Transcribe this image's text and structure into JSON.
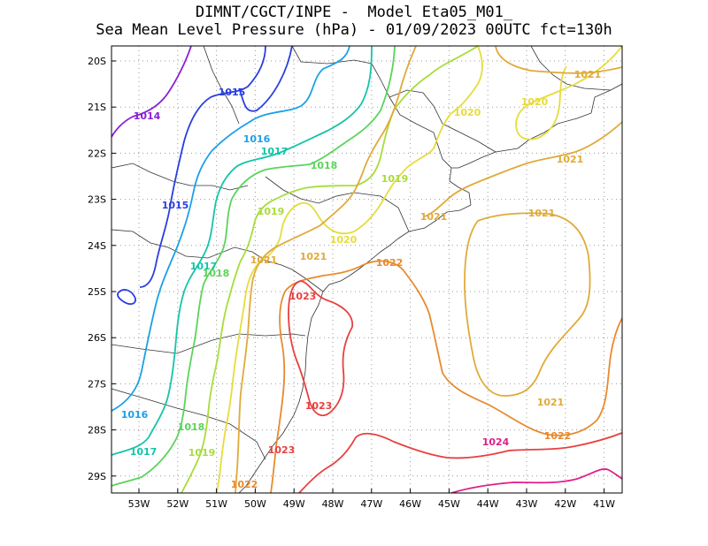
{
  "title": {
    "line1": "DIMNT/CGCT/INPE -  Model Eta05_M01_",
    "line2": "Sea Mean Level Pressure (hPa) - 01/09/2023 00UTC fct=130h"
  },
  "axes": {
    "lon_ticks": [
      "53W",
      "52W",
      "51W",
      "50W",
      "49W",
      "48W",
      "47W",
      "46W",
      "45W",
      "44W",
      "43W",
      "42W",
      "41W"
    ],
    "lat_ticks": [
      "20S",
      "21S",
      "22S",
      "23S",
      "24S",
      "25S",
      "26S",
      "27S",
      "28S",
      "29S"
    ]
  },
  "colors": {
    "c1014": "#8a1fd6",
    "c1015": "#2a3ee0",
    "c1016": "#1aa0e8",
    "c1017": "#14c4a8",
    "c1018": "#5ad45a",
    "c1019": "#a8dc3a",
    "c1020": "#e6dc3c",
    "c1021": "#e0aa3a",
    "c1022": "#e88a2e",
    "c1023": "#e84040",
    "c1024": "#e0208a"
  },
  "contour_labels": [
    {
      "text": "1014",
      "color": "c1014"
    },
    {
      "text": "1015",
      "color": "c1015"
    },
    {
      "text": "1015",
      "color": "c1015"
    },
    {
      "text": "1016",
      "color": "c1016"
    },
    {
      "text": "1016",
      "color": "c1016"
    },
    {
      "text": "1017",
      "color": "c1017"
    },
    {
      "text": "1017",
      "color": "c1017"
    },
    {
      "text": "1017",
      "color": "c1017"
    },
    {
      "text": "1018",
      "color": "c1018"
    },
    {
      "text": "1018",
      "color": "c1018"
    },
    {
      "text": "1018",
      "color": "c1018"
    },
    {
      "text": "1019",
      "color": "c1019"
    },
    {
      "text": "1019",
      "color": "c1019"
    },
    {
      "text": "1019",
      "color": "c1019"
    },
    {
      "text": "1020",
      "color": "c1020"
    },
    {
      "text": "1020",
      "color": "c1020"
    },
    {
      "text": "1020",
      "color": "c1020"
    },
    {
      "text": "1021",
      "color": "c1021"
    },
    {
      "text": "1021",
      "color": "c1021"
    },
    {
      "text": "1021",
      "color": "c1021"
    },
    {
      "text": "1021",
      "color": "c1021"
    },
    {
      "text": "1021",
      "color": "c1021"
    },
    {
      "text": "1021",
      "color": "c1021"
    },
    {
      "text": "1021",
      "color": "c1021"
    },
    {
      "text": "1022",
      "color": "c1022"
    },
    {
      "text": "1022",
      "color": "c1022"
    },
    {
      "text": "1022",
      "color": "c1022"
    },
    {
      "text": "1023",
      "color": "c1023"
    },
    {
      "text": "1023",
      "color": "c1023"
    },
    {
      "text": "1023",
      "color": "c1023"
    },
    {
      "text": "1024",
      "color": "c1024"
    }
  ]
}
